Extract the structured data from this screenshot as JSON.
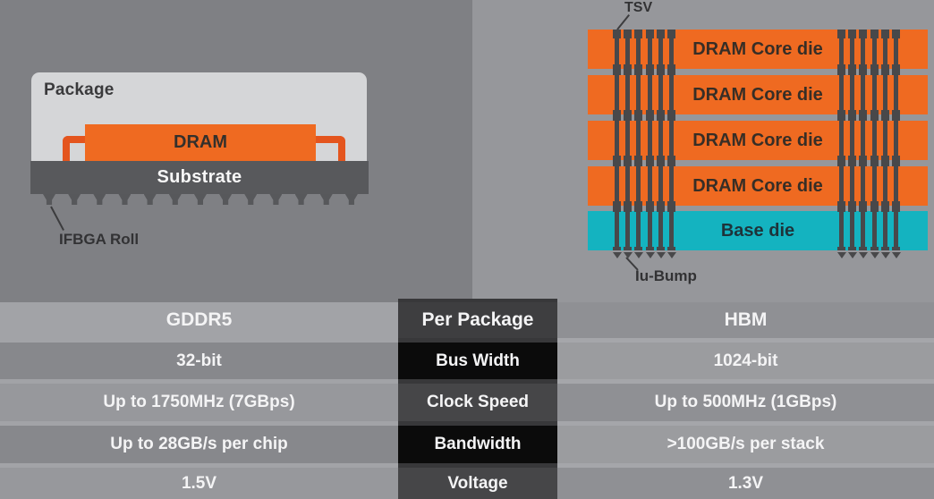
{
  "gddr5_panel": {
    "package_label": "Package",
    "chip_label": "DRAM",
    "substrate_label": "Substrate",
    "ball_label": "IFBGA Roll"
  },
  "hbm_panel": {
    "tsv_label": "TSV",
    "bump_label": "Iu-Bump",
    "core_die_labels": [
      "DRAM Core die",
      "DRAM Core die",
      "DRAM Core die",
      "DRAM Core die"
    ],
    "base_die_label": "Base die"
  },
  "comparison_table": {
    "headers": {
      "gddr5": "GDDR5",
      "metric": "Per Package",
      "hbm": "HBM"
    },
    "rows": [
      {
        "metric": "Bus Width",
        "gddr5": "32-bit",
        "hbm": "1024-bit"
      },
      {
        "metric": "Clock Speed",
        "gddr5": "Up to 1750MHz (7GBps)",
        "hbm": "Up to 500MHz (1GBps)"
      },
      {
        "metric": "Bandwidth",
        "gddr5": "Up to 28GB/s per chip",
        "hbm": ">100GB/s per stack"
      },
      {
        "metric": "Voltage",
        "gddr5": "1.5V",
        "hbm": "1.3V"
      }
    ]
  },
  "colors": {
    "die_orange": "#ef6a21",
    "lead_orange": "#e4551e",
    "base_die_teal": "#14b3c0",
    "substrate_gray": "#58595c",
    "metric_black": "#0b0b0b"
  }
}
